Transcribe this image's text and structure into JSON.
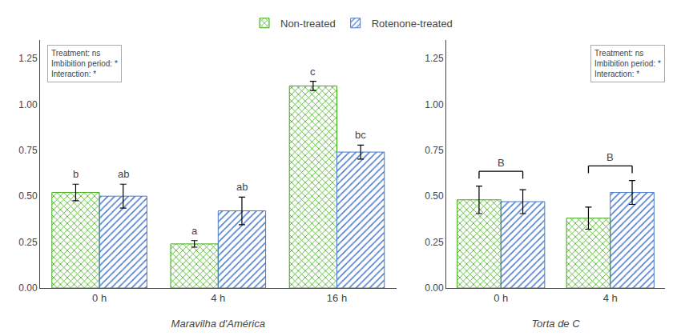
{
  "chart_data": [
    {
      "type": "bar",
      "categories": [
        "0 h",
        "4 h",
        "16 h"
      ],
      "xlabel": "Maravilha d'América",
      "series": [
        {
          "name": "Non-treated",
          "color": "#6dd832",
          "values": [
            0.52,
            0.24,
            1.1
          ],
          "errors": [
            0.045,
            0.018,
            0.025
          ],
          "letters": [
            "b",
            "a",
            "c"
          ]
        },
        {
          "name": "Rotenone-treated",
          "color": "#4477cc",
          "values": [
            0.5,
            0.42,
            0.74
          ],
          "errors": [
            0.065,
            0.075,
            0.038
          ],
          "letters": [
            "ab",
            "ab",
            "bc"
          ]
        }
      ],
      "annotation": "Treatment: ns\nImbibition period: *\nInteraction: *",
      "ylim": [
        0,
        1.35
      ],
      "yticks": [
        {
          "value": 0,
          "label": "0.00"
        },
        0.25,
        {
          "value": 0.5,
          "label": "0.50"
        },
        0.75,
        {
          "value": 1,
          "label": "1.00"
        },
        1.25
      ],
      "grid": false,
      "legend": "top"
    },
    {
      "type": "bar",
      "categories": [
        "0 h",
        "4 h"
      ],
      "xlabel": "Torta de C",
      "series": [
        {
          "name": "Non-treated",
          "color": "#6dd832",
          "values": [
            0.48,
            0.38
          ],
          "errors": [
            0.075,
            0.06
          ]
        },
        {
          "name": "Rotenone-treated",
          "color": "#4477cc",
          "values": [
            0.47,
            0.52
          ],
          "errors": [
            0.065,
            0.065
          ]
        }
      ],
      "group_labels": [
        "B",
        "B"
      ],
      "annotation": "Treatment: ns\nImbibition period: *\nInteraction: *",
      "ylim": [
        0,
        1.35
      ],
      "yticks": [
        {
          "value": 0,
          "label": "0.00"
        },
        0.25,
        {
          "value": 0.5,
          "label": "0.50"
        },
        0.75,
        {
          "value": 1,
          "label": "1.00"
        },
        1.25
      ],
      "grid": false
    }
  ]
}
